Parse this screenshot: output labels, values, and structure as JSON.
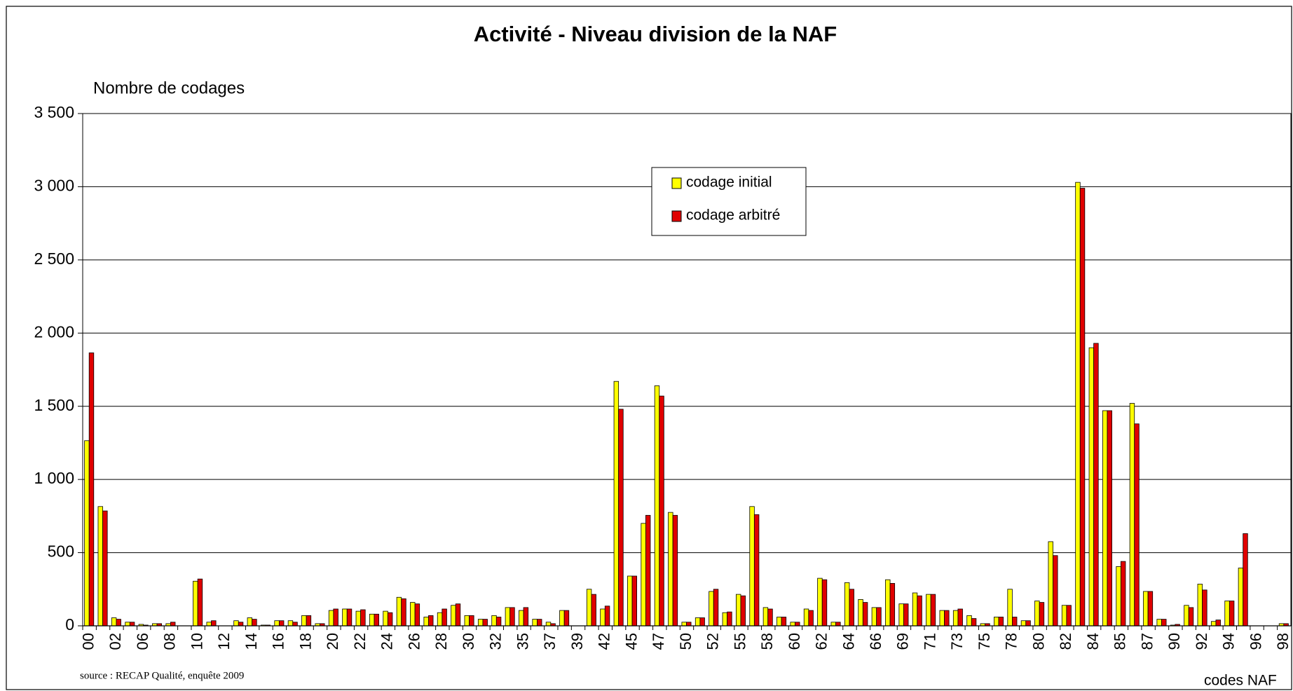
{
  "chart_data": {
    "type": "bar",
    "title": "Activité - Niveau division de la NAF",
    "y_axis_label": "Nombre de codages",
    "x_axis_label": "codes NAF",
    "source": "source : RECAP Qualité, enquête 2009",
    "categories": [
      "00",
      null,
      "02",
      null,
      "06",
      null,
      "08",
      null,
      "10",
      null,
      "12",
      null,
      "14",
      null,
      "16",
      null,
      "18",
      null,
      "20",
      null,
      "22",
      null,
      "24",
      null,
      "26",
      null,
      "28",
      null,
      "30",
      null,
      "32",
      null,
      "35",
      null,
      "37",
      null,
      "39",
      null,
      "42",
      null,
      "45",
      null,
      "47",
      null,
      "50",
      null,
      "52",
      null,
      "55",
      null,
      "58",
      null,
      "60",
      null,
      "62",
      null,
      "64",
      null,
      "66",
      null,
      "69",
      null,
      "71",
      null,
      "73",
      null,
      "75",
      null,
      "78",
      null,
      "80",
      null,
      "82",
      null,
      "84",
      null,
      "85",
      null,
      "87",
      null,
      "90",
      null,
      "92",
      null,
      "94",
      null,
      "96",
      null,
      "98"
    ],
    "series": [
      {
        "name": "codage initial",
        "color": "#ffff00",
        "values": [
          1265,
          815,
          55,
          25,
          10,
          15,
          15,
          0,
          305,
          25,
          0,
          35,
          55,
          5,
          35,
          35,
          70,
          15,
          105,
          115,
          100,
          80,
          100,
          195,
          160,
          60,
          90,
          140,
          70,
          45,
          70,
          125,
          105,
          45,
          25,
          105,
          0,
          250,
          115,
          1670,
          340,
          700,
          1640,
          775,
          25,
          55,
          235,
          90,
          215,
          815,
          125,
          60,
          25,
          115,
          325,
          25,
          295,
          180,
          125,
          315,
          150,
          225,
          215,
          105,
          105,
          70,
          15,
          60,
          250,
          35,
          170,
          575,
          140,
          3030,
          1900,
          1470,
          405,
          1520,
          235,
          45,
          5,
          140,
          285,
          30,
          170,
          395,
          0,
          0,
          15
        ]
      },
      {
        "name": "codage arbitré",
        "color": "#e00000",
        "values": [
          1865,
          785,
          45,
          25,
          5,
          15,
          25,
          0,
          320,
          35,
          0,
          25,
          45,
          5,
          35,
          25,
          70,
          15,
          115,
          115,
          110,
          80,
          90,
          185,
          150,
          70,
          115,
          150,
          70,
          45,
          60,
          125,
          125,
          45,
          15,
          105,
          0,
          215,
          135,
          1480,
          340,
          755,
          1570,
          755,
          25,
          55,
          250,
          95,
          205,
          760,
          115,
          60,
          25,
          105,
          315,
          25,
          250,
          160,
          125,
          290,
          150,
          205,
          215,
          105,
          115,
          50,
          15,
          60,
          60,
          35,
          160,
          480,
          140,
          2990,
          1930,
          1470,
          440,
          1380,
          235,
          45,
          10,
          125,
          245,
          40,
          170,
          630,
          0,
          0,
          15
        ]
      }
    ],
    "ylim": [
      0,
      3500
    ],
    "yticks": [
      0,
      500,
      {
        "value": 1000,
        "label": "1 000"
      },
      {
        "value": 1500,
        "label": "1 500"
      },
      {
        "value": 2000,
        "label": "2 000"
      },
      {
        "value": 2500,
        "label": "2 500"
      },
      {
        "value": 3000,
        "label": "3 000"
      },
      {
        "value": 3500,
        "label": "3 500"
      }
    ],
    "grid": true,
    "legend": "top-center"
  }
}
